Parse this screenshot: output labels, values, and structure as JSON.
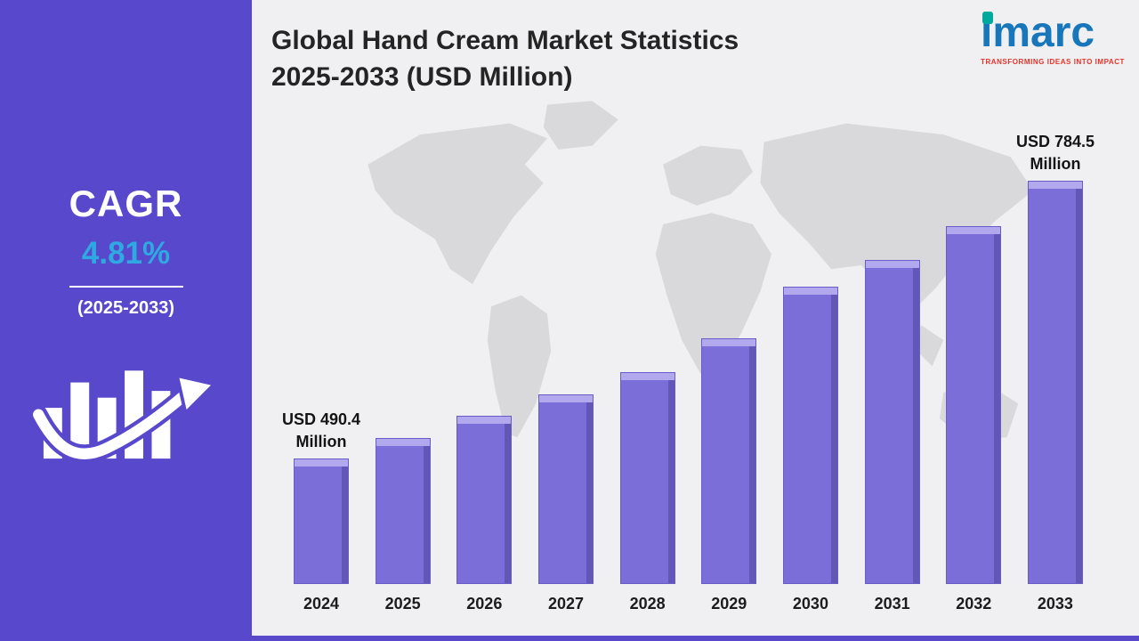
{
  "sidebar": {
    "cagr_label": "CAGR",
    "cagr_value": "4.81%",
    "period": "(2025-2033)"
  },
  "header": {
    "title_line1": "Global Hand Cream Market Statistics",
    "title_line2": "2025-2033 (USD Million)"
  },
  "logo": {
    "text": "imarc",
    "tagline": "TRANSFORMING IDEAS INTO IMPACT"
  },
  "chart_data": {
    "type": "bar",
    "title": "Global Hand Cream Market Statistics 2025-2033 (USD Million)",
    "unit": "USD Million",
    "categories": [
      "2024",
      "2025",
      "2026",
      "2027",
      "2028",
      "2029",
      "2030",
      "2031",
      "2032",
      "2033"
    ],
    "values": [
      490.4,
      512,
      536,
      558,
      582,
      618,
      672,
      700,
      736,
      784.5
    ],
    "ylim": [
      360,
      785
    ],
    "legend": false,
    "grid": false,
    "annotations": [
      {
        "category": "2024",
        "lines": [
          "USD 490.4",
          "Million"
        ]
      },
      {
        "category": "2033",
        "lines": [
          "USD 784.5",
          "Million"
        ]
      }
    ],
    "colors": {
      "bar": "#7b6ed8",
      "bar_top": "#b2a8ee",
      "bar_side": "#6257b6",
      "sidebar_bg": "#5848cc",
      "accent_blue": "#2fa9e2",
      "background": "#f0eff1",
      "map": "#d9d9db"
    }
  }
}
